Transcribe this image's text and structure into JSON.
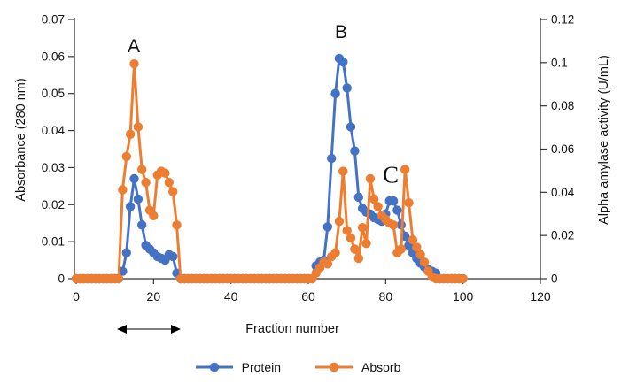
{
  "chart_data": {
    "type": "line",
    "xlabel": "Fraction number",
    "ylabel_left": "Absorbance (280 nm)",
    "ylabel_right": "Alpha amylase activity (U/mL)",
    "xlim": [
      0,
      120
    ],
    "ylim_left": [
      0,
      0.07
    ],
    "ylim_right": [
      0,
      0.12
    ],
    "x_tick_labels": [
      "0",
      "20",
      "40",
      "60",
      "80",
      "100",
      "120"
    ],
    "y_tick_labels_left": [
      "0.07",
      "0.06",
      "0.05",
      "0.04",
      "0.03",
      "0.02",
      "0.01",
      "0"
    ],
    "y_tick_labels_right": [
      "0.12",
      "0.1",
      "0.08",
      "0.06",
      "0.04",
      "0.02",
      "0"
    ],
    "grid": "off",
    "legend_position": "bottom-center",
    "marker": "circle",
    "x": [
      0,
      1,
      2,
      3,
      4,
      5,
      6,
      7,
      8,
      9,
      10,
      11,
      12,
      13,
      14,
      15,
      16,
      17,
      18,
      19,
      20,
      21,
      22,
      23,
      24,
      25,
      26,
      27,
      28,
      29,
      30,
      31,
      32,
      33,
      34,
      35,
      36,
      37,
      38,
      39,
      40,
      41,
      42,
      43,
      44,
      45,
      46,
      47,
      48,
      49,
      50,
      51,
      52,
      53,
      54,
      55,
      56,
      57,
      58,
      59,
      60,
      61,
      62,
      63,
      64,
      65,
      66,
      67,
      68,
      69,
      70,
      71,
      72,
      73,
      74,
      75,
      76,
      77,
      78,
      79,
      80,
      81,
      82,
      83,
      84,
      85,
      86,
      87,
      88,
      89,
      90,
      91,
      92,
      93,
      94,
      95,
      96,
      97,
      98,
      99,
      100
    ],
    "series": [
      {
        "name": "Protein",
        "color": "#4472C4",
        "axis": "left",
        "units": "left-axis (Absorbance 280 nm); right-axis value = left value × 0.12/0.07",
        "values": [
          0,
          0,
          0,
          0,
          0,
          0,
          0,
          0,
          0,
          0,
          0,
          0,
          0.002,
          0.007,
          0.0195,
          0.027,
          0.0215,
          0.0145,
          0.009,
          0.008,
          0.007,
          0.006,
          0.0055,
          0.005,
          0.0065,
          0.006,
          0.0015,
          0,
          0,
          0,
          0,
          0,
          0,
          0,
          0,
          0,
          0,
          0,
          0,
          0,
          0,
          0,
          0,
          0,
          0,
          0,
          0,
          0,
          0,
          0,
          0,
          0,
          0,
          0,
          0,
          0,
          0,
          0,
          0,
          0,
          0,
          0,
          0.0035,
          0.0045,
          0.005,
          0.014,
          0.0325,
          0.05,
          0.0595,
          0.0585,
          0.0515,
          0.041,
          0.0345,
          0.022,
          0.019,
          0.018,
          0.0175,
          0.0165,
          0.016,
          0.0155,
          0.0175,
          0.021,
          0.021,
          0.0185,
          0.0145,
          0.0115,
          0.009,
          0.007,
          0.0055,
          0.0042,
          0.0032,
          0.0025,
          0.002,
          0.0015,
          0,
          0,
          0,
          0,
          0,
          0,
          0
        ]
      },
      {
        "name": "Absorb",
        "color": "#ED7D31",
        "axis": "left",
        "units": "left-axis (Absorbance 280 nm); right-axis value = left value × 0.12/0.07",
        "values": [
          0,
          0,
          0,
          0,
          0,
          0,
          0,
          0,
          0,
          0,
          0,
          0,
          0.024,
          0.033,
          0.039,
          0.058,
          0.041,
          0.0295,
          0.026,
          0.0185,
          0.017,
          0.028,
          0.029,
          0.0285,
          0.026,
          0.0235,
          0.0145,
          0,
          0,
          0,
          0,
          0,
          0,
          0,
          0,
          0,
          0,
          0,
          0,
          0,
          0,
          0,
          0,
          0,
          0,
          0,
          0,
          0,
          0,
          0,
          0,
          0,
          0,
          0,
          0,
          0,
          0,
          0,
          0,
          0,
          0,
          0,
          0.0015,
          0.003,
          0.0045,
          0.004,
          0.006,
          0.007,
          0.0155,
          0.029,
          0.013,
          0.011,
          0.008,
          0.0055,
          0.0138,
          0.0095,
          0.027,
          0.0215,
          0.0195,
          0.017,
          0.016,
          0.015,
          0.0145,
          0.007,
          0.008,
          0.0295,
          0.0205,
          0.0105,
          0.0085,
          0.0065,
          0.0045,
          0.002,
          0.0005,
          0,
          0,
          0,
          0,
          0,
          0,
          0,
          0
        ]
      }
    ],
    "annotations": [
      {
        "text": "A",
        "marks": "orange peak near fraction 15"
      },
      {
        "text": "B",
        "marks": "blue peak near fraction 68"
      },
      {
        "text": "C",
        "marks": "bump/spike region near fractions 80-85"
      }
    ],
    "range_arrow": {
      "description": "double-headed arrow under x-axis spanning fractions ~11-27"
    }
  },
  "legend": {
    "items": [
      {
        "label": "Protein",
        "color": "#4472C4"
      },
      {
        "label": "Absorb",
        "color": "#ED7D31"
      }
    ]
  },
  "style": {
    "axis_color": "#333333",
    "text_color": "#111111",
    "background": "#ffffff"
  }
}
